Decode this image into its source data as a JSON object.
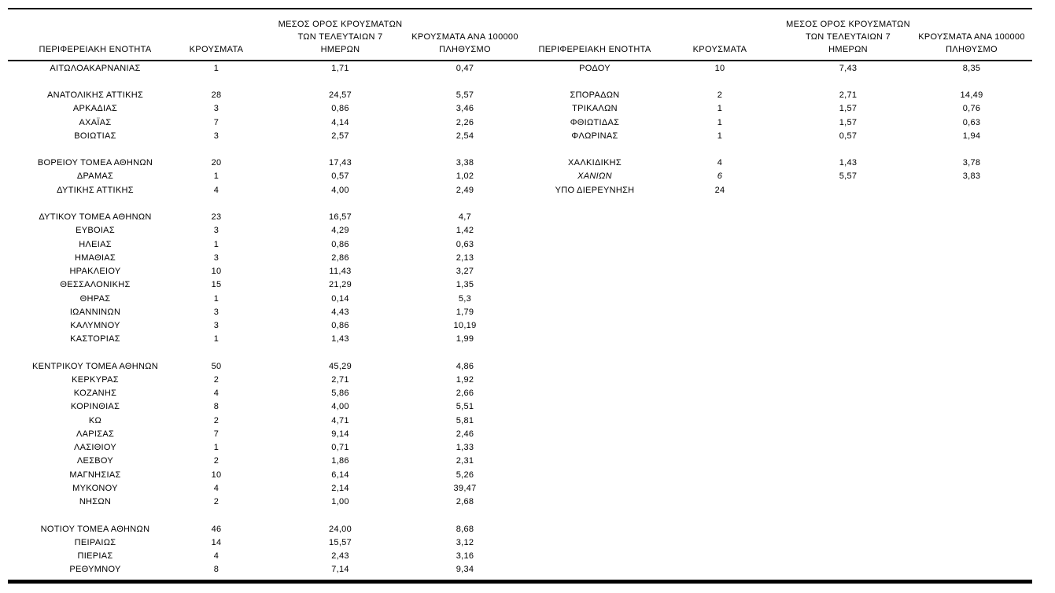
{
  "page": {
    "headers": {
      "region": "ΠΕΡΙΦΕΡΕΙΑΚΗ ΕΝΟΤΗΤΑ",
      "cases": "ΚΡΟΥΣΜΑΤΑ",
      "avg7_lines": [
        "ΜΕΣΟΣ ΟΡΟΣ ΚΡΟΥΣΜΑΤΩΝ",
        "ΤΩΝ ΤΕΛΕΥΤΑΙΩΝ 7",
        "ΗΜΕΡΩΝ"
      ],
      "per100k_lines": [
        "ΚΡΟΥΣΜΑΤΑ ΑΝΑ 100000",
        "ΠΛΗΘΥΣΜΟ"
      ]
    },
    "rows": [
      {
        "left": {
          "region": "ΑΙΤΩΛΟΑΚΑΡΝΑΝΙΑΣ",
          "cases": "1",
          "avg7": "1,71",
          "per100k": "0,47"
        },
        "right": {
          "region": "ΡΟΔΟΥ",
          "cases": "10",
          "avg7": "7,43",
          "per100k": "8,35"
        }
      },
      {
        "left": null,
        "right": null
      },
      {
        "left": {
          "region": "ΑΝΑΤΟΛΙΚΗΣ ΑΤΤΙΚΗΣ",
          "cases": "28",
          "avg7": "24,57",
          "per100k": "5,57"
        },
        "right": {
          "region": "ΣΠΟΡΑΔΩΝ",
          "cases": "2",
          "avg7": "2,71",
          "per100k": "14,49"
        }
      },
      {
        "left": {
          "region": "ΑΡΚΑΔΙΑΣ",
          "cases": "3",
          "avg7": "0,86",
          "per100k": "3,46"
        },
        "right": {
          "region": "ΤΡΙΚΑΛΩΝ",
          "cases": "1",
          "avg7": "1,57",
          "per100k": "0,76"
        }
      },
      {
        "left": {
          "region": "ΑΧΑΪΑΣ",
          "cases": "7",
          "avg7": "4,14",
          "per100k": "2,26"
        },
        "right": {
          "region": "ΦΘΙΩΤΙΔΑΣ",
          "cases": "1",
          "avg7": "1,57",
          "per100k": "0,63"
        }
      },
      {
        "left": {
          "region": "ΒΟΙΩΤΙΑΣ",
          "cases": "3",
          "avg7": "2,57",
          "per100k": "2,54"
        },
        "right": {
          "region": "ΦΛΩΡΙΝΑΣ",
          "cases": "1",
          "avg7": "0,57",
          "per100k": "1,94"
        }
      },
      {
        "left": null,
        "right": null
      },
      {
        "left": {
          "region": "ΒΟΡΕΙΟΥ ΤΟΜΕΑ ΑΘΗΝΩΝ",
          "cases": "20",
          "avg7": "17,43",
          "per100k": "3,38"
        },
        "right": {
          "region": "ΧΑΛΚΙΔΙΚΗΣ",
          "cases": "4",
          "avg7": "1,43",
          "per100k": "3,78"
        }
      },
      {
        "left": {
          "region": "ΔΡΑΜΑΣ",
          "cases": "1",
          "avg7": "0,57",
          "per100k": "1,02"
        },
        "right": {
          "region": "ΧΑΝΙΩΝ",
          "cases": "6",
          "avg7": "5,57",
          "per100k": "3,83",
          "italic": true
        }
      },
      {
        "left": {
          "region": "ΔΥΤΙΚΗΣ ΑΤΤΙΚΗΣ",
          "cases": "4",
          "avg7": "4,00",
          "per100k": "2,49"
        },
        "right": {
          "region": "ΥΠΟ ΔΙΕΡΕΥΝΗΣΗ",
          "cases": "24",
          "avg7": "",
          "per100k": ""
        }
      },
      {
        "left": null,
        "right": null
      },
      {
        "left": {
          "region": "ΔΥΤΙΚΟΥ ΤΟΜΕΑ ΑΘΗΝΩΝ",
          "cases": "23",
          "avg7": "16,57",
          "per100k": "4,7"
        },
        "right": null
      },
      {
        "left": {
          "region": "ΕΥΒΟΙΑΣ",
          "cases": "3",
          "avg7": "4,29",
          "per100k": "1,42"
        },
        "right": null
      },
      {
        "left": {
          "region": "ΗΛΕΙΑΣ",
          "cases": "1",
          "avg7": "0,86",
          "per100k": "0,63"
        },
        "right": null
      },
      {
        "left": {
          "region": "ΗΜΑΘΙΑΣ",
          "cases": "3",
          "avg7": "2,86",
          "per100k": "2,13"
        },
        "right": null
      },
      {
        "left": {
          "region": "ΗΡΑΚΛΕΙΟΥ",
          "cases": "10",
          "avg7": "11,43",
          "per100k": "3,27"
        },
        "right": null
      },
      {
        "left": {
          "region": "ΘΕΣΣΑΛΟΝΙΚΗΣ",
          "cases": "15",
          "avg7": "21,29",
          "per100k": "1,35"
        },
        "right": null
      },
      {
        "left": {
          "region": "ΘΗΡΑΣ",
          "cases": "1",
          "avg7": "0,14",
          "per100k": "5,3"
        },
        "right": null
      },
      {
        "left": {
          "region": "ΙΩΑΝΝΙΝΩΝ",
          "cases": "3",
          "avg7": "4,43",
          "per100k": "1,79"
        },
        "right": null
      },
      {
        "left": {
          "region": "ΚΑΛΥΜΝΟΥ",
          "cases": "3",
          "avg7": "0,86",
          "per100k": "10,19"
        },
        "right": null
      },
      {
        "left": {
          "region": "ΚΑΣΤΟΡΙΑΣ",
          "cases": "1",
          "avg7": "1,43",
          "per100k": "1,99"
        },
        "right": null
      },
      {
        "left": null,
        "right": null
      },
      {
        "left": {
          "region": "ΚΕΝΤΡΙΚΟΥ ΤΟΜΕΑ ΑΘΗΝΩΝ",
          "cases": "50",
          "avg7": "45,29",
          "per100k": "4,86"
        },
        "right": null
      },
      {
        "left": {
          "region": "ΚΕΡΚΥΡΑΣ",
          "cases": "2",
          "avg7": "2,71",
          "per100k": "1,92"
        },
        "right": null
      },
      {
        "left": {
          "region": "ΚΟΖΑΝΗΣ",
          "cases": "4",
          "avg7": "5,86",
          "per100k": "2,66"
        },
        "right": null
      },
      {
        "left": {
          "region": "ΚΟΡΙΝΘΙΑΣ",
          "cases": "8",
          "avg7": "4,00",
          "per100k": "5,51"
        },
        "right": null
      },
      {
        "left": {
          "region": "ΚΩ",
          "cases": "2",
          "avg7": "4,71",
          "per100k": "5,81"
        },
        "right": null
      },
      {
        "left": {
          "region": "ΛΑΡΙΣΑΣ",
          "cases": "7",
          "avg7": "9,14",
          "per100k": "2,46"
        },
        "right": null
      },
      {
        "left": {
          "region": "ΛΑΣΙΘΙΟΥ",
          "cases": "1",
          "avg7": "0,71",
          "per100k": "1,33"
        },
        "right": null
      },
      {
        "left": {
          "region": "ΛΕΣΒΟΥ",
          "cases": "2",
          "avg7": "1,86",
          "per100k": "2,31"
        },
        "right": null
      },
      {
        "left": {
          "region": "ΜΑΓΝΗΣΙΑΣ",
          "cases": "10",
          "avg7": "6,14",
          "per100k": "5,26"
        },
        "right": null
      },
      {
        "left": {
          "region": "ΜΥΚΟΝΟΥ",
          "cases": "4",
          "avg7": "2,14",
          "per100k": "39,47"
        },
        "right": null
      },
      {
        "left": {
          "region": "ΝΗΣΩΝ",
          "cases": "2",
          "avg7": "1,00",
          "per100k": "2,68"
        },
        "right": null
      },
      {
        "left": null,
        "right": null
      },
      {
        "left": {
          "region": "ΝΟΤΙΟΥ ΤΟΜΕΑ ΑΘΗΝΩΝ",
          "cases": "46",
          "avg7": "24,00",
          "per100k": "8,68"
        },
        "right": null
      },
      {
        "left": {
          "region": "ΠΕΙΡΑΙΩΣ",
          "cases": "14",
          "avg7": "15,57",
          "per100k": "3,12"
        },
        "right": null
      },
      {
        "left": {
          "region": "ΠΙΕΡΙΑΣ",
          "cases": "4",
          "avg7": "2,43",
          "per100k": "3,16"
        },
        "right": null
      },
      {
        "left": {
          "region": "ΡΕΘΥΜΝΟΥ",
          "cases": "8",
          "avg7": "7,14",
          "per100k": "9,34"
        },
        "right": null
      }
    ],
    "colors": {
      "text": "#000000",
      "background": "#ffffff",
      "rule": "#000000"
    }
  }
}
